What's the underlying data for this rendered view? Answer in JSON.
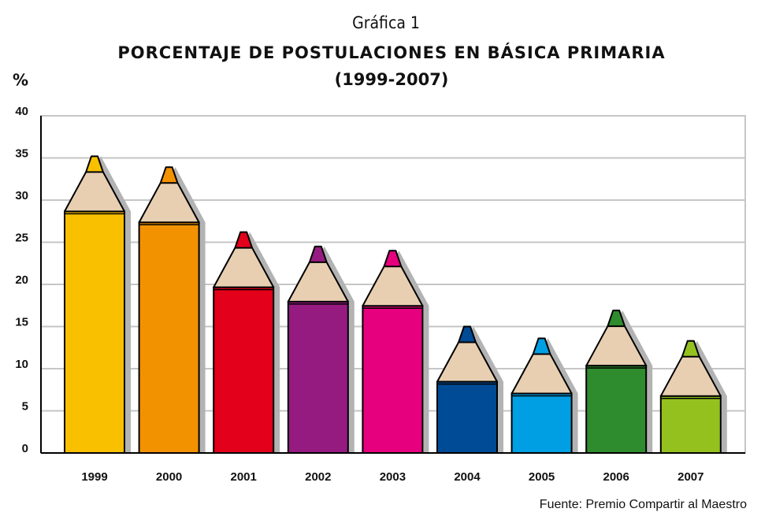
{
  "chart_data": {
    "type": "bar",
    "header": "Gráfica 1",
    "title": "PORCENTAJE DE POSTULACIONES EN BÁSICA PRIMARIA",
    "subtitle": "(1999-2007)",
    "y_label": "%",
    "source": "Fuente: Premio Compartir al Maestro",
    "categories": [
      "1999",
      "2000",
      "2001",
      "2002",
      "2003",
      "2004",
      "2005",
      "2006",
      "2007"
    ],
    "values": [
      35.2,
      33.9,
      26.2,
      24.5,
      24.0,
      15.0,
      13.6,
      16.9,
      13.3
    ],
    "colors": [
      "#f9c000",
      "#f29200",
      "#e2001a",
      "#951b81",
      "#e6007e",
      "#004b96",
      "#009fe3",
      "#2f8c2e",
      "#95c11f"
    ],
    "ylim": [
      0,
      40
    ],
    "yticks": [
      0,
      5,
      10,
      15,
      20,
      25,
      30,
      35,
      40
    ],
    "grid": true
  }
}
